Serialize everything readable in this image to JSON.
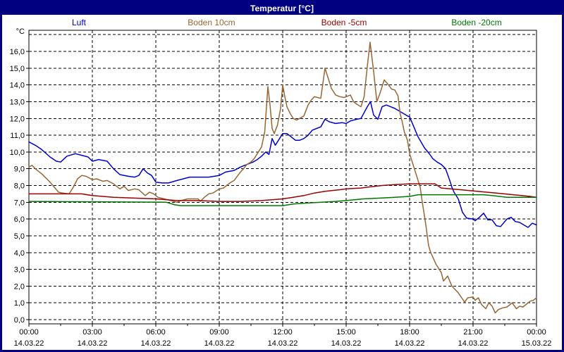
{
  "window": {
    "title": "Temperatur [°C]",
    "titlebar_color": "#000080",
    "border_color": "#000080"
  },
  "legend": {
    "items": [
      {
        "label": "Luft",
        "color": "#0000cc"
      },
      {
        "label": "Boden 10cm",
        "color": "#996633"
      },
      {
        "label": "Boden -5cm",
        "color": "#990000"
      },
      {
        "label": "Boden -20cm",
        "color": "#007700"
      }
    ]
  },
  "chart_data": {
    "type": "line",
    "title": "Temperatur [°C]",
    "grid": "dashed",
    "legend_position": "top",
    "y_axis": {
      "unit": "°C",
      "min": 0,
      "max": 17,
      "gridline_step": 1,
      "labels": [
        "0,0",
        "1,0",
        "2,0",
        "3,0",
        "4,0",
        "5,0",
        "6,0",
        "7,0",
        "8,0",
        "9,0",
        "10,0",
        "11,0",
        "12,0",
        "13,0",
        "14,0",
        "15,0",
        "16,0"
      ]
    },
    "x_axis": {
      "range_hours": [
        0,
        24
      ],
      "major_tick_hours": 3,
      "minor_tick_hours": 1.5,
      "tick_labels": [
        {
          "time": "00:00",
          "date": "14.03.22"
        },
        {
          "time": "03:00",
          "date": "14.03.22"
        },
        {
          "time": "06:00",
          "date": "14.03.22"
        },
        {
          "time": "09:00",
          "date": "14.03.22"
        },
        {
          "time": "12:00",
          "date": "14.03.22"
        },
        {
          "time": "15:00",
          "date": "14.03.22"
        },
        {
          "time": "18:00",
          "date": "14.03.22"
        },
        {
          "time": "21:00",
          "date": "14.03.22"
        },
        {
          "time": "00:00",
          "date": "15.03.22"
        }
      ]
    },
    "series": [
      {
        "name": "Luft",
        "color": "#0000cc",
        "points": [
          [
            0,
            10.6
          ],
          [
            0.3,
            10.4
          ],
          [
            0.6,
            10.15
          ],
          [
            1,
            9.7
          ],
          [
            1.3,
            9.45
          ],
          [
            1.5,
            9.4
          ],
          [
            1.8,
            9.75
          ],
          [
            2.2,
            9.9
          ],
          [
            2.5,
            9.8
          ],
          [
            2.8,
            9.7
          ],
          [
            3,
            9.45
          ],
          [
            3.3,
            9.55
          ],
          [
            3.7,
            9.45
          ],
          [
            4,
            9.0
          ],
          [
            4.3,
            8.65
          ],
          [
            4.7,
            8.55
          ],
          [
            5,
            8.5
          ],
          [
            5.2,
            8.6
          ],
          [
            5.4,
            9.0
          ],
          [
            5.6,
            8.75
          ],
          [
            5.8,
            8.6
          ],
          [
            6,
            8.2
          ],
          [
            6.3,
            8.15
          ],
          [
            6.6,
            8.15
          ],
          [
            7,
            8.3
          ],
          [
            7.3,
            8.4
          ],
          [
            7.6,
            8.5
          ],
          [
            8,
            8.5
          ],
          [
            8.5,
            8.5
          ],
          [
            9,
            8.6
          ],
          [
            9.3,
            8.8
          ],
          [
            9.7,
            8.9
          ],
          [
            10,
            9.1
          ],
          [
            10.3,
            9.25
          ],
          [
            10.6,
            9.4
          ],
          [
            10.8,
            9.55
          ],
          [
            11,
            9.75
          ],
          [
            11.2,
            10.0
          ],
          [
            11.35,
            9.85
          ],
          [
            11.5,
            10.8
          ],
          [
            11.65,
            10.4
          ],
          [
            11.8,
            10.7
          ],
          [
            12,
            11.1
          ],
          [
            12.2,
            11.1
          ],
          [
            12.4,
            10.9
          ],
          [
            12.6,
            10.7
          ],
          [
            12.8,
            10.7
          ],
          [
            13,
            10.8
          ],
          [
            13.2,
            11.0
          ],
          [
            13.4,
            11.3
          ],
          [
            13.6,
            11.4
          ],
          [
            13.8,
            11.5
          ],
          [
            14,
            11.95
          ],
          [
            14.2,
            11.8
          ],
          [
            14.5,
            11.7
          ],
          [
            14.8,
            11.75
          ],
          [
            15,
            11.7
          ],
          [
            15.2,
            11.85
          ],
          [
            15.5,
            11.95
          ],
          [
            15.7,
            12.0
          ],
          [
            16,
            12.7
          ],
          [
            16.15,
            13.0
          ],
          [
            16.3,
            12.2
          ],
          [
            16.5,
            11.95
          ],
          [
            16.7,
            12.7
          ],
          [
            16.9,
            12.8
          ],
          [
            17.1,
            12.7
          ],
          [
            17.3,
            12.6
          ],
          [
            17.5,
            12.45
          ],
          [
            17.7,
            12.3
          ],
          [
            17.9,
            12.15
          ],
          [
            18,
            12.1
          ],
          [
            18.2,
            11.5
          ],
          [
            18.4,
            10.9
          ],
          [
            18.7,
            10.25
          ],
          [
            18.9,
            9.95
          ],
          [
            19.1,
            9.6
          ],
          [
            19.3,
            9.4
          ],
          [
            19.5,
            9.25
          ],
          [
            19.7,
            9.0
          ],
          [
            19.9,
            8.3
          ],
          [
            20,
            7.9
          ],
          [
            20.1,
            7.6
          ],
          [
            20.3,
            7.2
          ],
          [
            20.5,
            6.4
          ],
          [
            20.7,
            6.05
          ],
          [
            21,
            6.0
          ],
          [
            21.1,
            5.9
          ],
          [
            21.3,
            6.1
          ],
          [
            21.5,
            6.35
          ],
          [
            21.7,
            5.95
          ],
          [
            21.9,
            5.95
          ],
          [
            22.1,
            5.6
          ],
          [
            22.3,
            5.55
          ],
          [
            22.6,
            6.0
          ],
          [
            22.8,
            6.1
          ],
          [
            23,
            5.85
          ],
          [
            23.2,
            5.8
          ],
          [
            23.4,
            5.65
          ],
          [
            23.6,
            5.5
          ],
          [
            23.8,
            5.75
          ],
          [
            24,
            5.65
          ]
        ]
      },
      {
        "name": "Boden 10cm",
        "color": "#996633",
        "points": [
          [
            0,
            9.1
          ],
          [
            0.15,
            9.2
          ],
          [
            0.3,
            9.0
          ],
          [
            0.6,
            8.7
          ],
          [
            1,
            8.2
          ],
          [
            1.2,
            7.9
          ],
          [
            1.4,
            7.6
          ],
          [
            1.6,
            7.55
          ],
          [
            1.9,
            7.5
          ],
          [
            2.1,
            7.9
          ],
          [
            2.3,
            8.4
          ],
          [
            2.5,
            8.6
          ],
          [
            2.7,
            8.55
          ],
          [
            3,
            8.35
          ],
          [
            3.2,
            8.4
          ],
          [
            3.5,
            8.25
          ],
          [
            3.7,
            8.3
          ],
          [
            4,
            8.1
          ],
          [
            4.3,
            7.8
          ],
          [
            4.5,
            7.95
          ],
          [
            4.7,
            7.7
          ],
          [
            5,
            7.8
          ],
          [
            5.2,
            7.75
          ],
          [
            5.5,
            7.4
          ],
          [
            5.7,
            7.6
          ],
          [
            5.9,
            7.5
          ],
          [
            6.1,
            7.3
          ],
          [
            6.4,
            7.2
          ],
          [
            6.7,
            7.1
          ],
          [
            7,
            7.0
          ],
          [
            7.2,
            7.1
          ],
          [
            7.5,
            7.2
          ],
          [
            7.8,
            7.2
          ],
          [
            8,
            7.2
          ],
          [
            8.1,
            7.05
          ],
          [
            8.3,
            7.3
          ],
          [
            8.5,
            7.5
          ],
          [
            8.7,
            7.55
          ],
          [
            9,
            7.8
          ],
          [
            9.2,
            7.85
          ],
          [
            9.35,
            8.0
          ],
          [
            9.5,
            8.15
          ],
          [
            9.7,
            8.3
          ],
          [
            10,
            8.8
          ],
          [
            10.15,
            9.0
          ],
          [
            10.3,
            9.25
          ],
          [
            10.5,
            9.4
          ],
          [
            10.65,
            9.6
          ],
          [
            10.8,
            9.9
          ],
          [
            11,
            10.3
          ],
          [
            11.15,
            11.2
          ],
          [
            11.3,
            13.9
          ],
          [
            11.4,
            12.8
          ],
          [
            11.5,
            11.4
          ],
          [
            11.6,
            11.1
          ],
          [
            11.75,
            11.6
          ],
          [
            11.9,
            12.6
          ],
          [
            12,
            14.0
          ],
          [
            12.1,
            13.3
          ],
          [
            12.2,
            12.7
          ],
          [
            12.35,
            12.3
          ],
          [
            12.5,
            12.0
          ],
          [
            12.65,
            11.9
          ],
          [
            12.8,
            12.0
          ],
          [
            13,
            12.15
          ],
          [
            13.2,
            12.8
          ],
          [
            13.35,
            13.1
          ],
          [
            13.5,
            13.3
          ],
          [
            13.65,
            13.25
          ],
          [
            13.8,
            13.2
          ],
          [
            14,
            15.0
          ],
          [
            14.15,
            14.4
          ],
          [
            14.3,
            13.8
          ],
          [
            14.5,
            13.4
          ],
          [
            14.7,
            13.3
          ],
          [
            14.9,
            13.25
          ],
          [
            15,
            13.3
          ],
          [
            15.2,
            13.4
          ],
          [
            15.35,
            13.0
          ],
          [
            15.5,
            12.85
          ],
          [
            15.7,
            12.7
          ],
          [
            15.85,
            13.3
          ],
          [
            16,
            15.1
          ],
          [
            16.13,
            16.55
          ],
          [
            16.3,
            14.8
          ],
          [
            16.45,
            13.0
          ],
          [
            16.6,
            13.5
          ],
          [
            16.8,
            14.3
          ],
          [
            17,
            14.0
          ],
          [
            17.15,
            13.75
          ],
          [
            17.3,
            13.7
          ],
          [
            17.45,
            13.35
          ],
          [
            17.55,
            12.3
          ],
          [
            17.65,
            11.8
          ],
          [
            17.75,
            11.2
          ],
          [
            17.9,
            10.7
          ],
          [
            18,
            9.9
          ],
          [
            18.2,
            9.1
          ],
          [
            18.35,
            8.5
          ],
          [
            18.5,
            7.9
          ],
          [
            18.6,
            7.0
          ],
          [
            18.75,
            5.8
          ],
          [
            18.9,
            4.4
          ],
          [
            19,
            4.0
          ],
          [
            19.25,
            3.3
          ],
          [
            19.5,
            2.8
          ],
          [
            19.6,
            2.3
          ],
          [
            19.8,
            2.6
          ],
          [
            20,
            2.0
          ],
          [
            20.3,
            1.6
          ],
          [
            20.6,
            1.05
          ],
          [
            20.75,
            1.3
          ],
          [
            21,
            1.35
          ],
          [
            21.1,
            1.15
          ],
          [
            21.25,
            1.3
          ],
          [
            21.4,
            0.9
          ],
          [
            21.6,
            0.65
          ],
          [
            21.75,
            1.0
          ],
          [
            21.9,
            0.8
          ],
          [
            22.05,
            0.4
          ],
          [
            22.2,
            0.6
          ],
          [
            22.4,
            0.7
          ],
          [
            22.6,
            0.75
          ],
          [
            22.85,
            1.0
          ],
          [
            23.05,
            0.65
          ],
          [
            23.2,
            0.8
          ],
          [
            23.35,
            0.75
          ],
          [
            23.5,
            0.9
          ],
          [
            23.7,
            1.1
          ],
          [
            23.85,
            1.15
          ],
          [
            24,
            1.3
          ]
        ]
      },
      {
        "name": "Boden -5cm",
        "color": "#990000",
        "points": [
          [
            0,
            7.5
          ],
          [
            2.5,
            7.5
          ],
          [
            3,
            7.4
          ],
          [
            4,
            7.3
          ],
          [
            5,
            7.25
          ],
          [
            6,
            7.2
          ],
          [
            7,
            7.1
          ],
          [
            8,
            7.1
          ],
          [
            9,
            7.05
          ],
          [
            10,
            7.05
          ],
          [
            11,
            7.1
          ],
          [
            12,
            7.2
          ],
          [
            12.5,
            7.3
          ],
          [
            13,
            7.4
          ],
          [
            13.5,
            7.55
          ],
          [
            14,
            7.65
          ],
          [
            14.7,
            7.75
          ],
          [
            15,
            7.8
          ],
          [
            15.7,
            7.85
          ],
          [
            16,
            7.9
          ],
          [
            16.7,
            8.0
          ],
          [
            17.3,
            8.05
          ],
          [
            18,
            8.1
          ],
          [
            19.2,
            8.1
          ],
          [
            19.5,
            7.85
          ],
          [
            20.4,
            7.75
          ],
          [
            21.2,
            7.65
          ],
          [
            22.1,
            7.55
          ],
          [
            22.9,
            7.45
          ],
          [
            23.3,
            7.4
          ],
          [
            23.7,
            7.35
          ],
          [
            24,
            7.3
          ]
        ]
      },
      {
        "name": "Boden -20cm",
        "color": "#007700",
        "points": [
          [
            0,
            7.05
          ],
          [
            6.5,
            7.0
          ],
          [
            6.9,
            6.85
          ],
          [
            7.2,
            6.8
          ],
          [
            12,
            6.8
          ],
          [
            12.5,
            6.9
          ],
          [
            13.1,
            6.95
          ],
          [
            14.5,
            7.05
          ],
          [
            15,
            7.1
          ],
          [
            15.8,
            7.2
          ],
          [
            16.6,
            7.25
          ],
          [
            17.3,
            7.3
          ],
          [
            18,
            7.35
          ],
          [
            18.4,
            7.45
          ],
          [
            21.5,
            7.45
          ],
          [
            21.9,
            7.4
          ],
          [
            22.6,
            7.3
          ],
          [
            24,
            7.3
          ]
        ]
      }
    ]
  }
}
